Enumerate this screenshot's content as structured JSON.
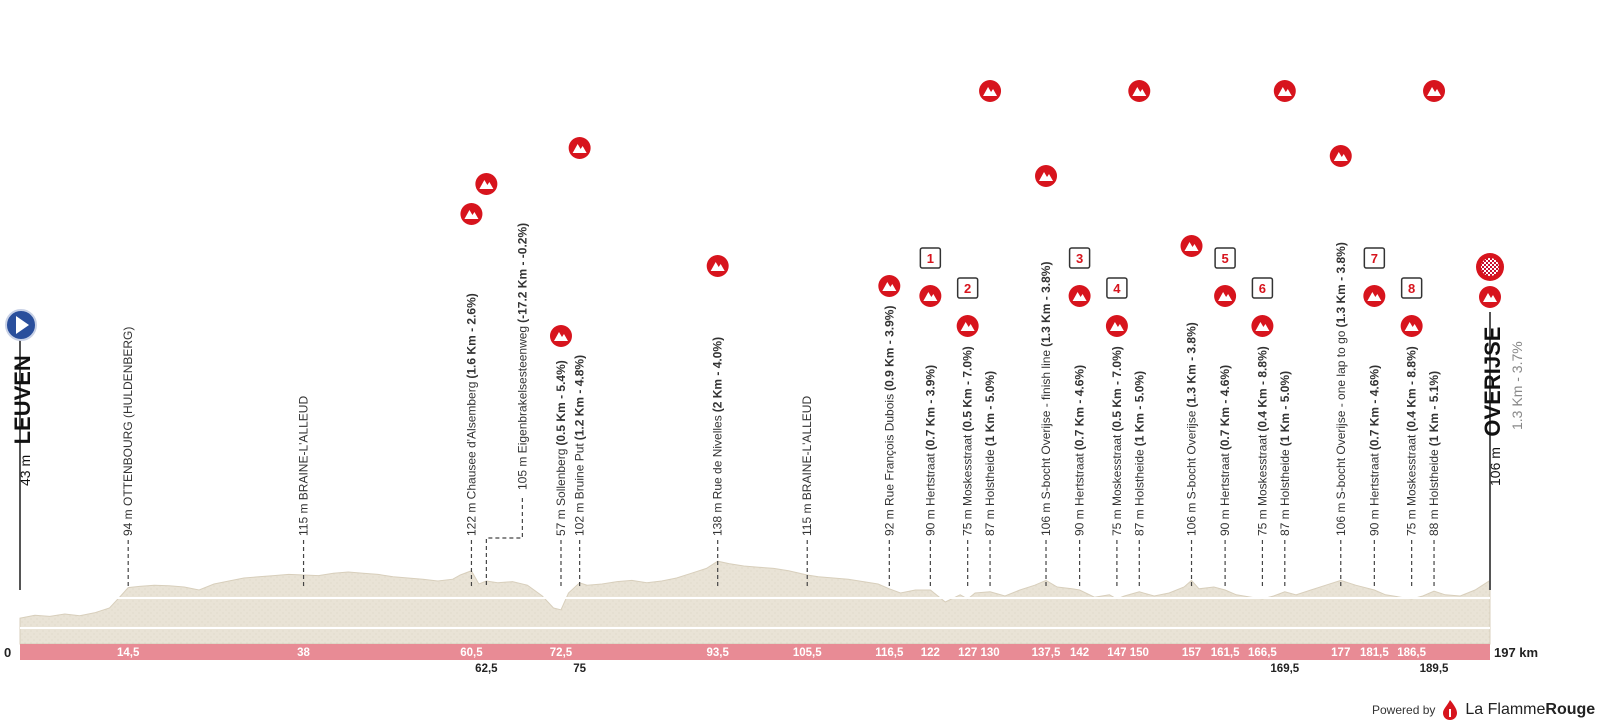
{
  "chart_data": {
    "type": "area",
    "title": "",
    "xlabel": "",
    "ylabel": "",
    "x_unit": "km",
    "xlim": [
      0,
      197
    ],
    "ylim": [
      0,
      300
    ],
    "start": {
      "name": "LEUVEN",
      "altitude": "43 m"
    },
    "finish": {
      "name": "OVERIJSE",
      "altitude": "106 m",
      "last_climb": "1.3 Km - 3.7%"
    },
    "series": [
      {
        "x": [
          0,
          2,
          4,
          6,
          8,
          10,
          12,
          13.5,
          14.5,
          16,
          18,
          20,
          22,
          24,
          26,
          28,
          30,
          32,
          34,
          36,
          38,
          40,
          42,
          44,
          46,
          48,
          50,
          52,
          54,
          56,
          58,
          59,
          60.5,
          61.5,
          62.5,
          64,
          66,
          68,
          70,
          71.5,
          72.5,
          73.5,
          75,
          76,
          78,
          80,
          82,
          84,
          86,
          88,
          90,
          92,
          93.5,
          95,
          97,
          99,
          101,
          103,
          105.5,
          107,
          109,
          111,
          113,
          115,
          116.5,
          118,
          120,
          122,
          124,
          126,
          127,
          128,
          130,
          132,
          134,
          136,
          137.5,
          139,
          141,
          142,
          144,
          146,
          147,
          148,
          150,
          152,
          154,
          156,
          157,
          158,
          160,
          161.5,
          163,
          165,
          166.5,
          168,
          169.5,
          171,
          173,
          175,
          177,
          179,
          181.5,
          183,
          185,
          186.5,
          188,
          189.5,
          191,
          193,
          195,
          197
        ],
        "y": [
          43,
          48,
          46,
          50,
          47,
          52,
          60,
          80,
          94,
          96,
          98,
          97,
          95,
          90,
          100,
          105,
          110,
          112,
          114,
          116,
          115,
          114,
          118,
          120,
          118,
          116,
          112,
          110,
          108,
          105,
          108,
          115,
          122,
          100,
          105,
          102,
          104,
          98,
          80,
          60,
          57,
          85,
          102,
          98,
          100,
          104,
          106,
          102,
          105,
          110,
          118,
          126,
          138,
          134,
          130,
          128,
          126,
          122,
          115,
          112,
          110,
          108,
          104,
          100,
          92,
          85,
          90,
          90,
          70,
          82,
          75,
          85,
          87,
          80,
          90,
          98,
          106,
          95,
          92,
          90,
          78,
          82,
          75,
          80,
          87,
          80,
          85,
          95,
          106,
          92,
          95,
          90,
          82,
          78,
          75,
          80,
          87,
          82,
          90,
          98,
          106,
          98,
          90,
          82,
          78,
          75,
          80,
          88,
          82,
          80,
          90,
          106
        ]
      }
    ],
    "points": [
      {
        "km": "14,5",
        "x": 14.5,
        "alt": "94 m",
        "name": "OTTENBOURG (HULDENBERG)",
        "detail": "",
        "icon": ""
      },
      {
        "km": "38",
        "x": 38,
        "alt": "115 m",
        "name": "BRAINE-L'ALLEUD",
        "detail": "",
        "icon": ""
      },
      {
        "km": "60,5",
        "x": 60.5,
        "alt": "122 m",
        "name": "Chausee d'Alsemberg",
        "detail": "(1.6 Km - 2.6%)",
        "icon": "climb"
      },
      {
        "km": "62,5",
        "x": 62.5,
        "alt": "105 m",
        "name": "Eigenbrakelsesteenweg",
        "detail": "(-17.2 Km - -0.2%)",
        "icon": "climb"
      },
      {
        "km": "72,5",
        "x": 72.5,
        "alt": "57 m",
        "name": "Sollenberg",
        "detail": "(0.5 Km - 5.4%)",
        "icon": "climb"
      },
      {
        "km": "75",
        "x": 75,
        "alt": "102 m",
        "name": "Bruine Put",
        "detail": "(1.2 Km - 4.8%)",
        "icon": "climb"
      },
      {
        "km": "93,5",
        "x": 93.5,
        "alt": "138 m",
        "name": "Rue de Nivelles",
        "detail": "(2 Km - 4.0%)",
        "icon": "climb"
      },
      {
        "km": "105,5",
        "x": 105.5,
        "alt": "115 m",
        "name": "BRAINE-L'ALLEUD",
        "detail": "",
        "icon": ""
      },
      {
        "km": "116,5",
        "x": 116.5,
        "alt": "92 m",
        "name": "Rue François Dubois",
        "detail": "(0.9 Km - 3.9%)",
        "icon": "climb"
      },
      {
        "km": "122",
        "x": 122,
        "alt": "90 m",
        "name": "Hertstraat",
        "detail": "(0.7 Km - 3.9%)",
        "icon": "climb",
        "sector": "1"
      },
      {
        "km": "127",
        "x": 127,
        "alt": "75 m",
        "name": "Moskesstraat",
        "detail": "(0.5 Km - 7.0%)",
        "icon": "climb",
        "sector": "2"
      },
      {
        "km": "130",
        "x": 130,
        "alt": "87 m",
        "name": "Holstheide",
        "detail": "(1 Km - 5.0%)",
        "icon": "climb"
      },
      {
        "km": "137,5",
        "x": 137.5,
        "alt": "106 m",
        "name": "S-bocht Overijse - finish line",
        "detail": "(1.3 Km - 3.8%)",
        "icon": "climb"
      },
      {
        "km": "142",
        "x": 142,
        "alt": "90 m",
        "name": "Hertstraat",
        "detail": "(0.7 Km - 4.6%)",
        "icon": "climb",
        "sector": "3"
      },
      {
        "km": "147",
        "x": 147,
        "alt": "75 m",
        "name": "Moskesstraat",
        "detail": "(0.5 Km - 7.0%)",
        "icon": "climb",
        "sector": "4"
      },
      {
        "km": "150",
        "x": 150,
        "alt": "87 m",
        "name": "Holstheide",
        "detail": "(1 Km - 5.0%)",
        "icon": "climb"
      },
      {
        "km": "157",
        "x": 157,
        "alt": "106 m",
        "name": "S-bocht Overijse",
        "detail": "(1.3 Km - 3.8%)",
        "icon": "climb"
      },
      {
        "km": "161,5",
        "x": 161.5,
        "alt": "90 m",
        "name": "Hertstraat",
        "detail": "(0.7 Km - 4.6%)",
        "icon": "climb",
        "sector": "5"
      },
      {
        "km": "166,5",
        "x": 166.5,
        "alt": "75 m",
        "name": "Moskesstraat",
        "detail": "(0.4 Km - 8.8%)",
        "icon": "climb",
        "sector": "6"
      },
      {
        "km": "169,5",
        "x": 169.5,
        "alt": "87 m",
        "name": "Holstheide",
        "detail": "(1 Km - 5.0%)",
        "icon": "climb"
      },
      {
        "km": "177",
        "x": 177,
        "alt": "106 m",
        "name": "S-bocht Overijse - one lap to go",
        "detail": "(1.3 Km - 3.8%)",
        "icon": "climb"
      },
      {
        "km": "181,5",
        "x": 181.5,
        "alt": "90 m",
        "name": "Hertstraat",
        "detail": "(0.7 Km - 4.6%)",
        "icon": "climb",
        "sector": "7"
      },
      {
        "km": "186,5",
        "x": 186.5,
        "alt": "75 m",
        "name": "Moskesstraat",
        "detail": "(0.4 Km - 8.8%)",
        "icon": "climb",
        "sector": "8"
      },
      {
        "km": "189,5",
        "x": 189.5,
        "alt": "88 m",
        "name": "Holstheide",
        "detail": "(1 Km - 5.1%)",
        "icon": "climb"
      }
    ],
    "axis_labels": {
      "zero": "0",
      "end": "197 km"
    },
    "colors": {
      "profile": "#e9e3d6",
      "profile_edge": "#d8cfbc",
      "axis_bar": "#e88b95",
      "climb_icon": "#d7141d",
      "sector_border": "#333333"
    }
  },
  "footer": {
    "powered_by": "Powered by",
    "brand_regular": "La Flamme",
    "brand_bold": "Rouge"
  }
}
